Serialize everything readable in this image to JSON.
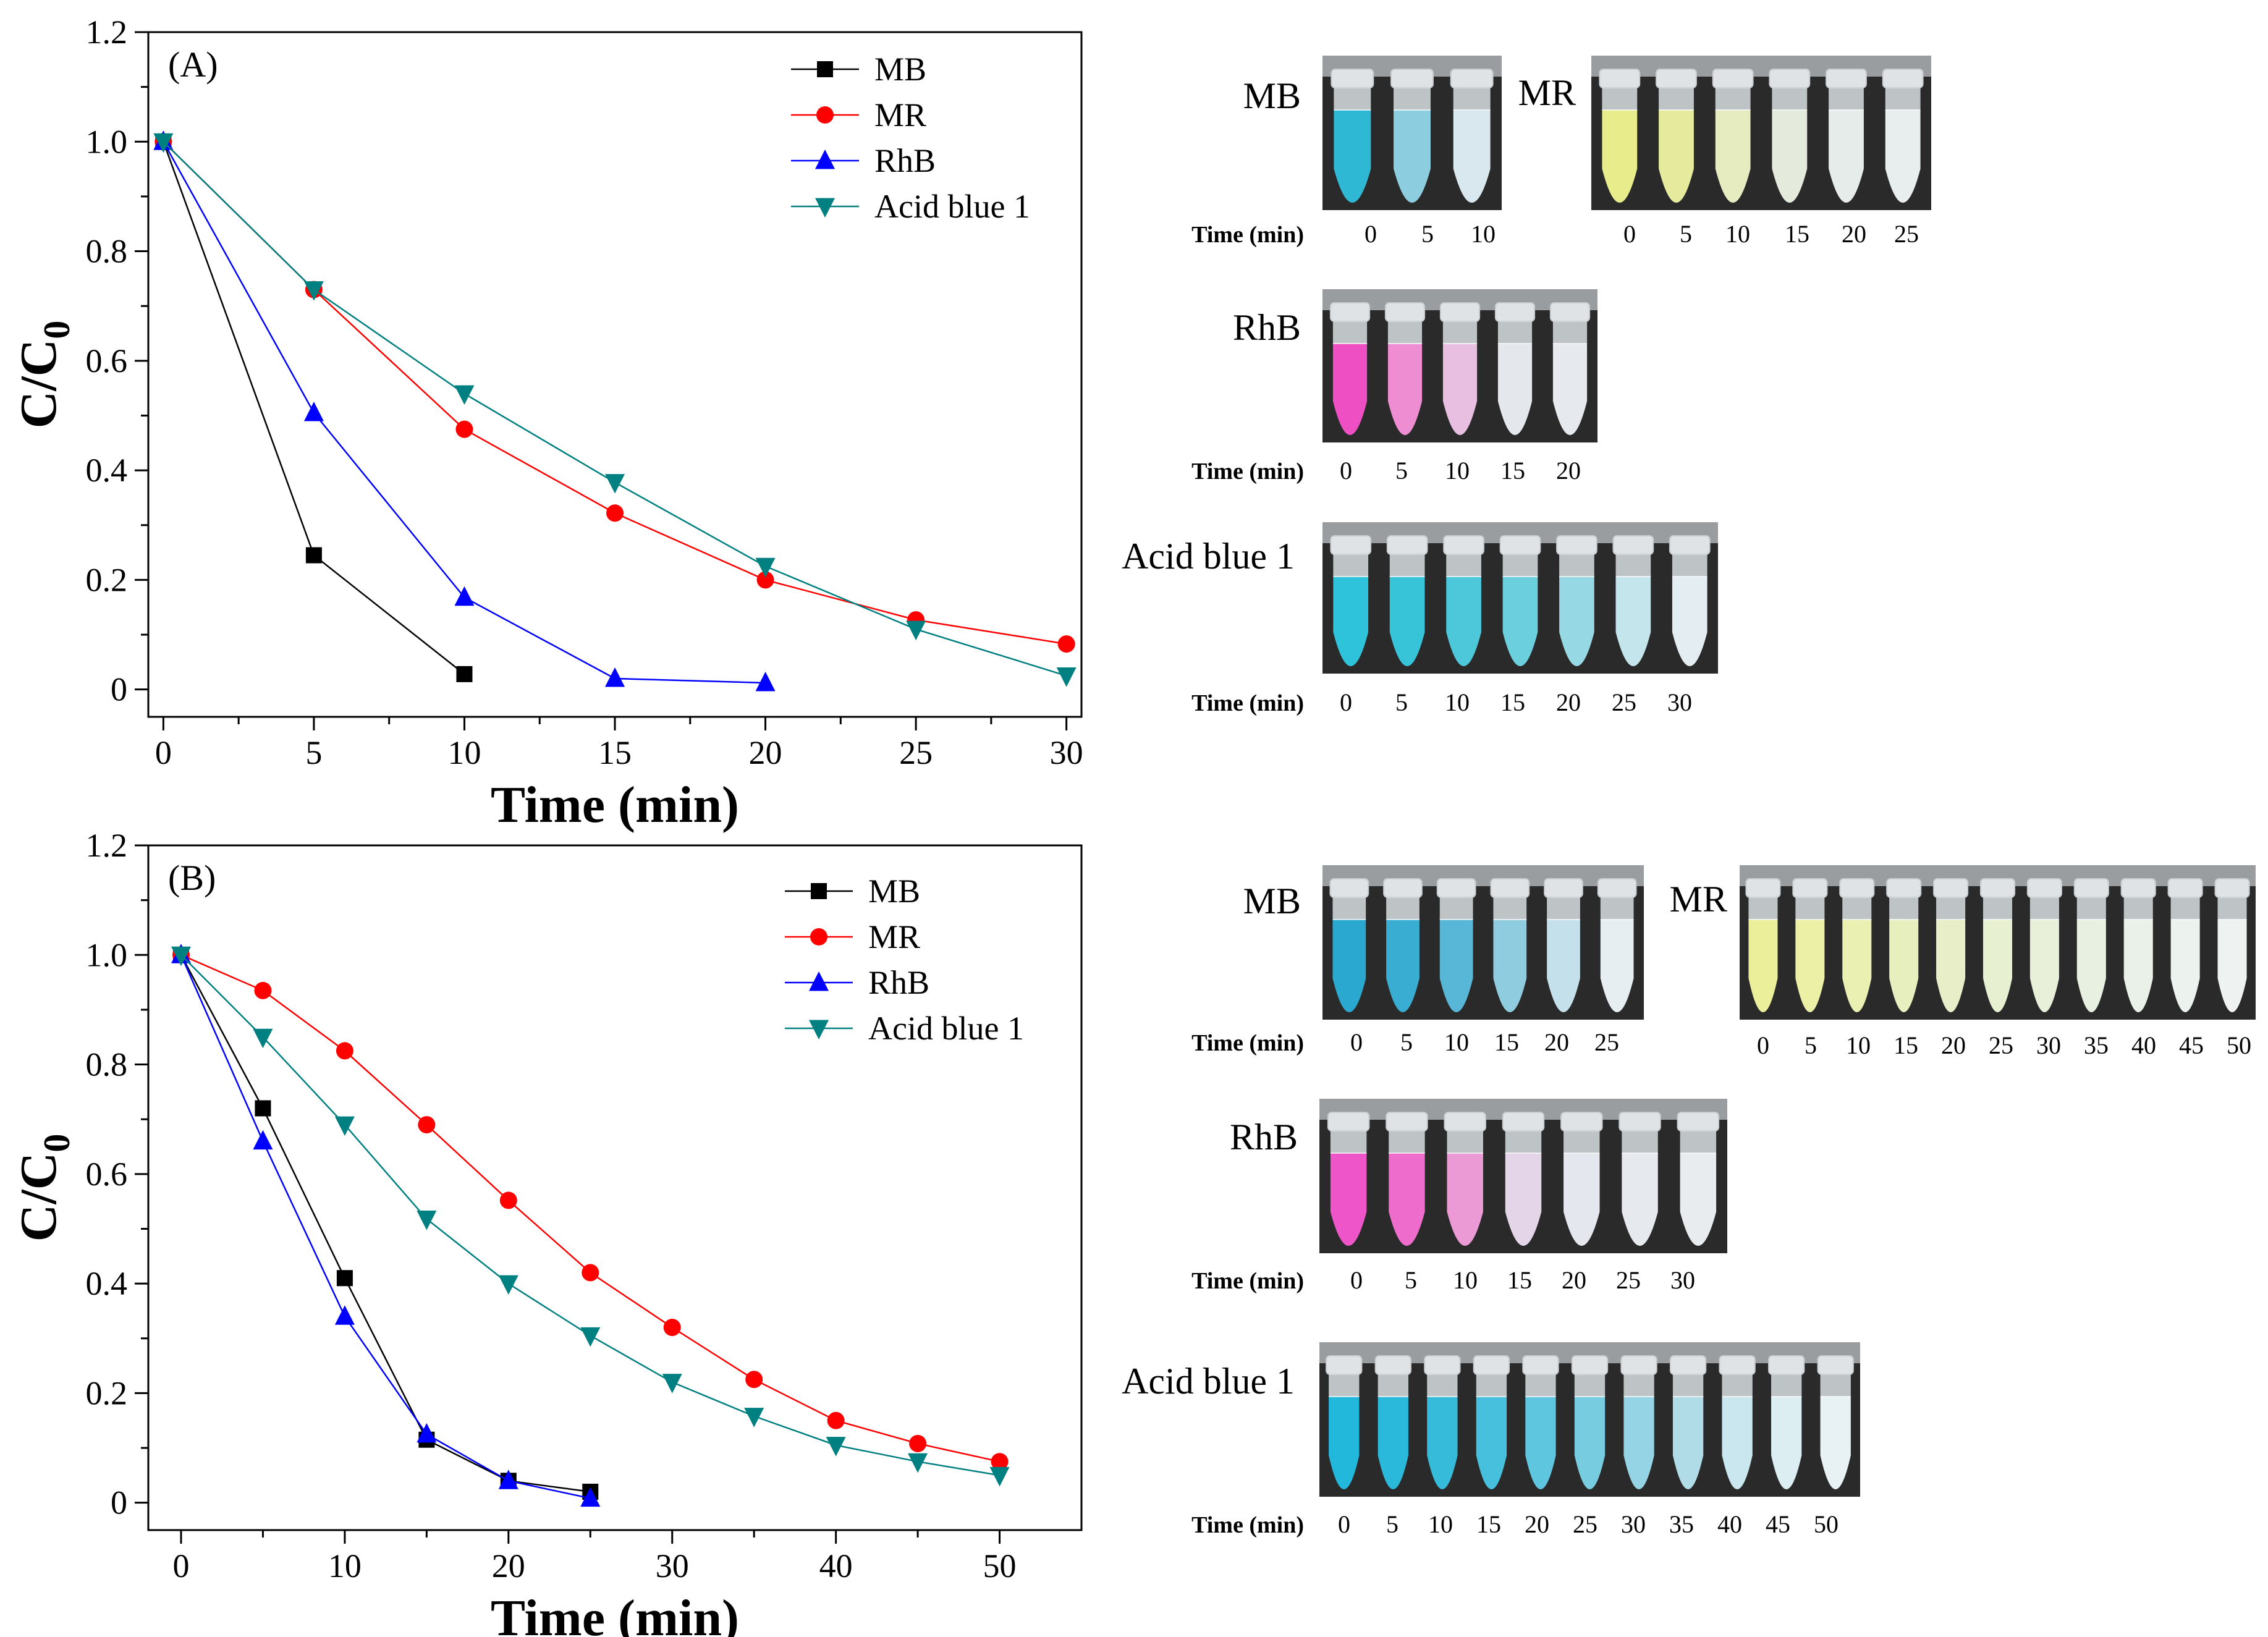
{
  "chart_data": [
    {
      "type": "line",
      "panel_label": "(A)",
      "xlabel": "Time (min)",
      "ylabel_main": "C/C",
      "ylabel_sub": "0",
      "xlim": [
        -0.5,
        30.5
      ],
      "ylim": [
        -0.05,
        1.2
      ],
      "xticks": [
        0,
        5,
        10,
        15,
        20,
        25,
        30
      ],
      "yticks": [
        0,
        0.2,
        0.4,
        0.6,
        0.8,
        1.0,
        1.2
      ],
      "ytick_labels": [
        "0",
        "0.2",
        "0.4",
        "0.6",
        "0.8",
        "1.0",
        "1.2"
      ],
      "legend_position": "top-right",
      "series": [
        {
          "name": "MB",
          "color": "#000000",
          "marker": "square",
          "x": [
            0,
            5,
            10
          ],
          "values": [
            1.0,
            0.245,
            0.028
          ]
        },
        {
          "name": "MR",
          "color": "#ff0000",
          "marker": "circle",
          "x": [
            0,
            5,
            10,
            15,
            20,
            25,
            30
          ],
          "values": [
            1.0,
            0.73,
            0.475,
            0.322,
            0.2,
            0.127,
            0.083
          ]
        },
        {
          "name": "RhB",
          "color": "#0000ff",
          "marker": "triangle-up",
          "x": [
            0,
            5,
            10,
            15,
            20
          ],
          "values": [
            1.0,
            0.505,
            0.168,
            0.02,
            0.012
          ]
        },
        {
          "name": "Acid blue 1",
          "color": "#008080",
          "marker": "triangle-down",
          "x": [
            0,
            5,
            10,
            15,
            20,
            25,
            30
          ],
          "values": [
            1.0,
            0.73,
            0.54,
            0.378,
            0.225,
            0.11,
            0.025
          ]
        }
      ]
    },
    {
      "type": "line",
      "panel_label": "(B)",
      "xlabel": "Time (min)",
      "ylabel_main": "C/C",
      "ylabel_sub": "0",
      "xlim": [
        -2,
        55
      ],
      "ylim": [
        -0.05,
        1.2
      ],
      "xticks": [
        0,
        10,
        20,
        30,
        40,
        50
      ],
      "yticks": [
        0,
        0.2,
        0.4,
        0.6,
        0.8,
        1.0,
        1.2
      ],
      "ytick_labels": [
        "0",
        "0.2",
        "0.4",
        "0.6",
        "0.8",
        "1.0",
        "1.2"
      ],
      "legend_position": "top-right",
      "series": [
        {
          "name": "MB",
          "color": "#000000",
          "marker": "square",
          "x": [
            0,
            5,
            10,
            15,
            20,
            25
          ],
          "values": [
            1.0,
            0.72,
            0.41,
            0.115,
            0.04,
            0.02
          ]
        },
        {
          "name": "MR",
          "color": "#ff0000",
          "marker": "circle",
          "x": [
            0,
            5,
            10,
            15,
            20,
            25,
            30,
            35,
            40,
            45,
            50
          ],
          "values": [
            1.0,
            0.935,
            0.825,
            0.69,
            0.552,
            0.42,
            0.32,
            0.225,
            0.15,
            0.108,
            0.075
          ]
        },
        {
          "name": "RhB",
          "color": "#0000ff",
          "marker": "triangle-up",
          "x": [
            0,
            5,
            10,
            15,
            20,
            25
          ],
          "values": [
            1.0,
            0.66,
            0.34,
            0.125,
            0.04,
            0.008
          ]
        },
        {
          "name": "Acid blue 1",
          "color": "#008080",
          "marker": "triangle-down",
          "x": [
            0,
            5,
            10,
            15,
            20,
            25,
            30,
            35,
            40,
            45,
            50
          ],
          "values": [
            1.0,
            0.85,
            0.69,
            0.518,
            0.4,
            0.305,
            0.22,
            0.158,
            0.105,
            0.075,
            0.05
          ]
        }
      ]
    }
  ],
  "photo_panels": [
    {
      "id": "A-MB",
      "title": "MB",
      "time_caption": "Time (min)",
      "times": [
        "0",
        "5",
        "10"
      ],
      "liquid_colors": [
        "#2fb8d4",
        "#8ccde0",
        "#d8e8ee"
      ]
    },
    {
      "id": "A-MR",
      "title": "MR",
      "time_caption": "",
      "times": [
        "0",
        "5",
        "10",
        "15",
        "20",
        "25"
      ],
      "liquid_colors": [
        "#e8ec8a",
        "#e6ea9c",
        "#e6ebc0",
        "#e4eadc",
        "#e6ecea",
        "#e8eeee"
      ]
    },
    {
      "id": "A-RhB",
      "title": "RhB",
      "time_caption": "Time (min)",
      "times": [
        "0",
        "5",
        "10",
        "15",
        "20"
      ],
      "liquid_colors": [
        "#ee4fc2",
        "#ee8dd2",
        "#e8bfe0",
        "#e4e8ec",
        "#e6eaee"
      ]
    },
    {
      "id": "A-AB1",
      "title": "Acid blue 1",
      "time_caption": "Time (min)",
      "times": [
        "0",
        "5",
        "10",
        "15",
        "20",
        "25",
        "30"
      ],
      "liquid_colors": [
        "#2ec3da",
        "#38c4d8",
        "#4cc8da",
        "#6ccfde",
        "#96d8e4",
        "#c4e5ec",
        "#e4eef2"
      ]
    },
    {
      "id": "B-MB",
      "title": "MB",
      "time_caption": "Time (min)",
      "times": [
        "0",
        "5",
        "10",
        "15",
        "20",
        "25"
      ],
      "liquid_colors": [
        "#2aa8d0",
        "#3aaed2",
        "#58b6d6",
        "#90cce0",
        "#c4e0ea",
        "#e6eef2"
      ]
    },
    {
      "id": "B-MR",
      "title": "MR",
      "time_caption": "",
      "times": [
        "0",
        "5",
        "10",
        "15",
        "20",
        "25",
        "30",
        "35",
        "40",
        "45",
        "50"
      ],
      "liquid_colors": [
        "#ecef9a",
        "#ecf0a6",
        "#eaf0b2",
        "#e8efbe",
        "#e8efc8",
        "#e8f0d2",
        "#e8f0da",
        "#e8f0e2",
        "#eaf1e8",
        "#ecf2ee",
        "#eef3f2"
      ]
    },
    {
      "id": "B-RhB",
      "title": "RhB",
      "time_caption": "Time (min)",
      "times": [
        "0",
        "5",
        "10",
        "15",
        "20",
        "25",
        "30"
      ],
      "liquid_colors": [
        "#ee55c8",
        "#ee6ccc",
        "#ec9ad6",
        "#e4d6e8",
        "#e4e8ee",
        "#e6eaee",
        "#e8ecef"
      ]
    },
    {
      "id": "B-AB1",
      "title": "Acid blue 1",
      "time_caption": "Time (min)",
      "times": [
        "0",
        "5",
        "10",
        "15",
        "20",
        "25",
        "30",
        "35",
        "40",
        "45",
        "50"
      ],
      "liquid_colors": [
        "#22b8dc",
        "#2ab9da",
        "#36bcda",
        "#46c0dc",
        "#5ec6de",
        "#78cce0",
        "#94d4e4",
        "#b0dce8",
        "#cae6ee",
        "#dceef2",
        "#e8f2f4"
      ]
    }
  ]
}
